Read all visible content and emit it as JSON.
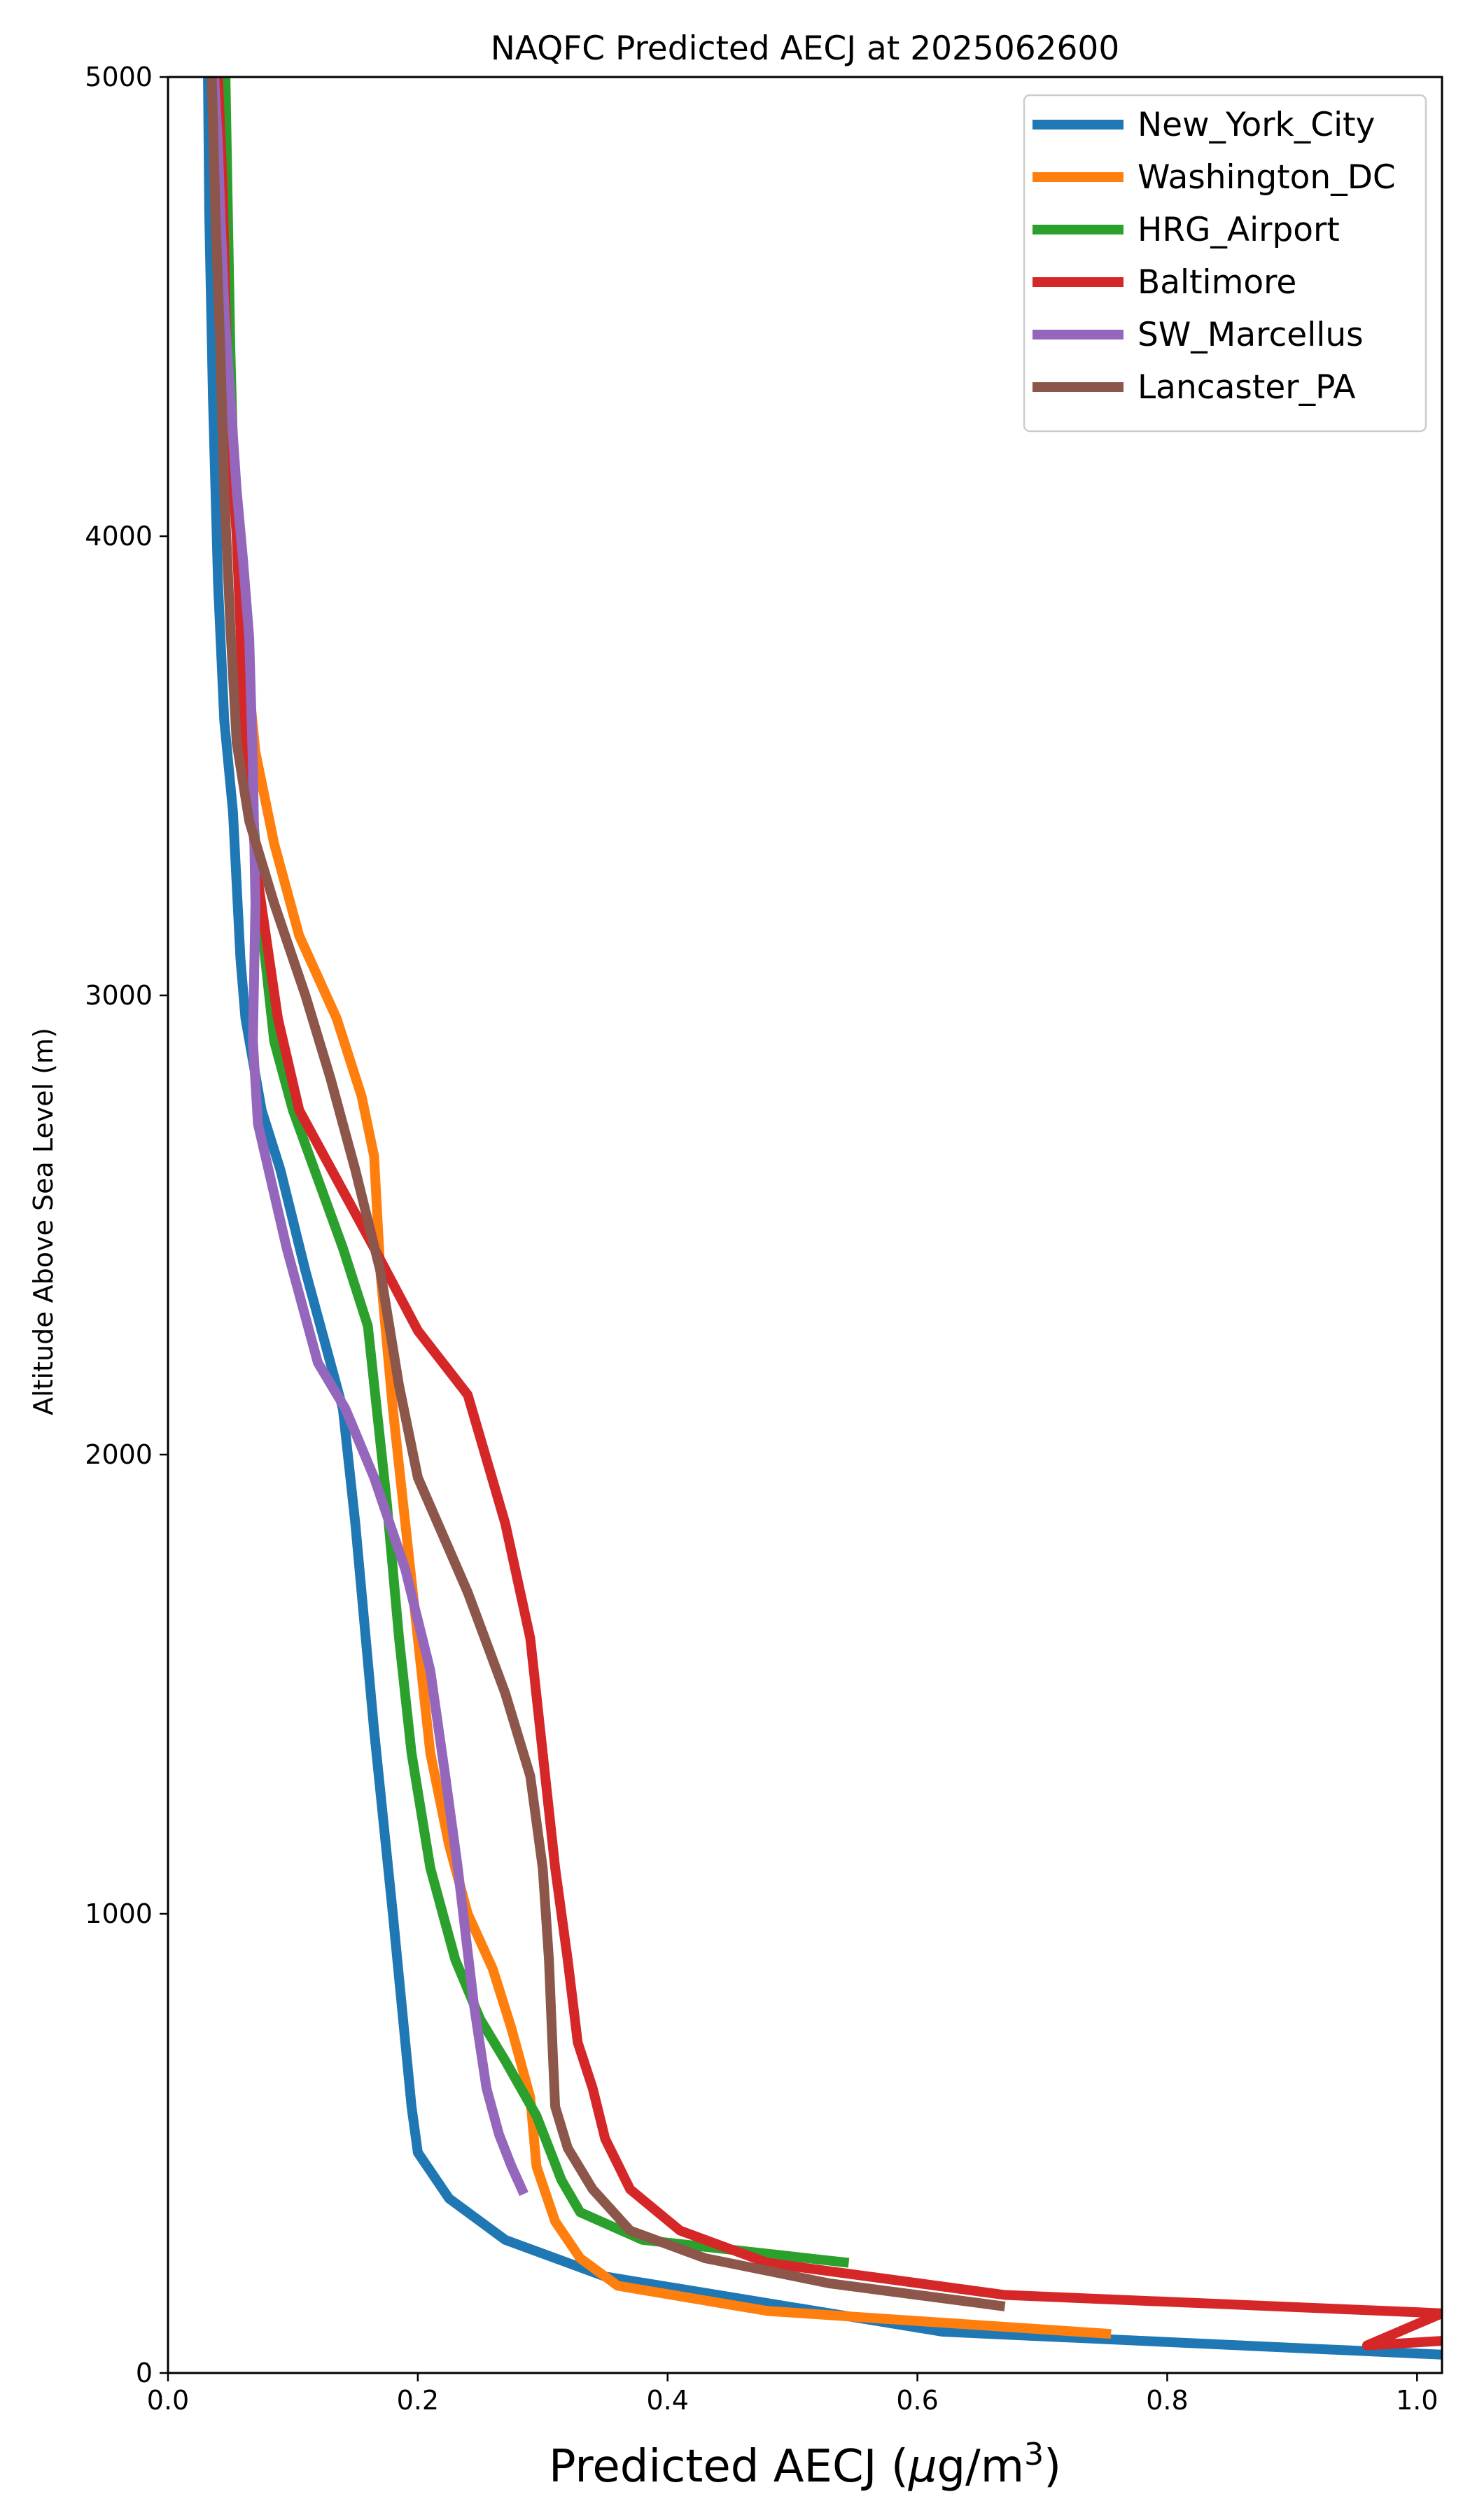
{
  "chart_data": {
    "type": "line",
    "title": "NAQFC Predicted AECJ at 2025062600",
    "xlabel": "Predicted AECJ (μg/m³)",
    "xlabel_main": "Predicted AECJ (",
    "xlabel_mu": "μ",
    "xlabel_unit": "g/m",
    "xlabel_exp": "3",
    "xlabel_close": ")",
    "ylabel": "Altitude Above Sea Level (m)",
    "xlim": [
      0.0,
      1.02
    ],
    "ylim": [
      0,
      5000
    ],
    "xticks": [
      0.0,
      0.2,
      0.4,
      0.6,
      0.8,
      1.0
    ],
    "xtick_labels": [
      "0.0",
      "0.2",
      "0.4",
      "0.6",
      "0.8",
      "1.0"
    ],
    "yticks": [
      0,
      1000,
      2000,
      3000,
      4000,
      5000
    ],
    "ytick_labels": [
      "0",
      "1000",
      "2000",
      "3000",
      "4000",
      "5000"
    ],
    "grid": false,
    "legend_position": "top-right",
    "series": [
      {
        "name": "New_York_City",
        "color": "#1f77b4",
        "x": [
          1.02,
          0.62,
          0.35,
          0.27,
          0.225,
          0.2,
          0.195,
          0.18,
          0.165,
          0.15,
          0.14,
          0.11,
          0.09,
          0.075,
          0.062,
          0.058,
          0.052,
          0.045,
          0.04,
          0.036,
          0.033,
          0.032,
          0.032
        ],
        "y": [
          40,
          90,
          210,
          290,
          380,
          480,
          580,
          1000,
          1400,
          1850,
          2100,
          2400,
          2620,
          2750,
          2950,
          3080,
          3400,
          3600,
          3900,
          4300,
          4700,
          5000,
          5000
        ]
      },
      {
        "name": "Washington_DC",
        "color": "#ff7f0e",
        "x": [
          0.755,
          0.48,
          0.36,
          0.33,
          0.31,
          0.295,
          0.29,
          0.275,
          0.26,
          0.24,
          0.225,
          0.21,
          0.2,
          0.19,
          0.18,
          0.17,
          0.165,
          0.155,
          0.135,
          0.105,
          0.085,
          0.07,
          0.062,
          0.058,
          0.052,
          0.048,
          0.045,
          0.042,
          0.04
        ],
        "y": [
          85,
          135,
          190,
          250,
          330,
          450,
          600,
          750,
          880,
          1000,
          1150,
          1350,
          1600,
          1850,
          2100,
          2400,
          2650,
          2780,
          2950,
          3130,
          3330,
          3530,
          3750,
          3950,
          4200,
          4450,
          4700,
          4900,
          5000
        ]
      },
      {
        "name": "HRG_Airport",
        "color": "#2ca02c",
        "x": [
          0.545,
          0.38,
          0.33,
          0.315,
          0.295,
          0.27,
          0.25,
          0.23,
          0.21,
          0.195,
          0.185,
          0.175,
          0.16,
          0.14,
          0.12,
          0.1,
          0.085,
          0.075,
          0.068,
          0.062,
          0.058,
          0.055,
          0.052,
          0.05,
          0.048,
          0.046
        ],
        "y": [
          240,
          290,
          350,
          420,
          560,
          680,
          770,
          900,
          1100,
          1350,
          1600,
          1900,
          2280,
          2450,
          2600,
          2750,
          2900,
          3150,
          3400,
          3600,
          3800,
          4000,
          4200,
          4400,
          4700,
          5000
        ]
      },
      {
        "name": "Baltimore",
        "color": "#d62728",
        "x": [
          1.02,
          0.96,
          1.02,
          0.67,
          0.48,
          0.41,
          0.37,
          0.35,
          0.34,
          0.328,
          0.32,
          0.31,
          0.3,
          0.29,
          0.27,
          0.24,
          0.2,
          0.165,
          0.135,
          0.105,
          0.088,
          0.08,
          0.072,
          0.065,
          0.06,
          0.058,
          0.055,
          0.05,
          0.046,
          0.044,
          0.04
        ],
        "y": [
          70,
          60,
          130,
          170,
          240,
          310,
          400,
          510,
          620,
          720,
          900,
          1100,
          1350,
          1600,
          1850,
          2130,
          2270,
          2450,
          2600,
          2750,
          2950,
          3100,
          3250,
          3450,
          3650,
          3800,
          4000,
          4200,
          4500,
          4750,
          5000
        ]
      },
      {
        "name": "SW_Marcellus",
        "color": "#9467bd",
        "x": [
          0.285,
          0.275,
          0.265,
          0.255,
          0.245,
          0.232,
          0.222,
          0.21,
          0.19,
          0.165,
          0.142,
          0.12,
          0.095,
          0.072,
          0.068,
          0.07,
          0.068,
          0.065,
          0.06,
          0.055,
          0.05,
          0.045,
          0.042,
          0.04,
          0.037
        ],
        "y": [
          390,
          450,
          520,
          620,
          800,
          1100,
          1300,
          1530,
          1750,
          1950,
          2100,
          2200,
          2450,
          2720,
          2900,
          3200,
          3500,
          3780,
          3950,
          4100,
          4300,
          4500,
          4700,
          4850,
          5000
        ]
      },
      {
        "name": "Lancaster_PA",
        "color": "#8c564b",
        "x": [
          0.67,
          0.53,
          0.43,
          0.37,
          0.34,
          0.32,
          0.31,
          0.308,
          0.305,
          0.3,
          0.29,
          0.27,
          0.24,
          0.2,
          0.185,
          0.17,
          0.15,
          0.13,
          0.11,
          0.085,
          0.065,
          0.055,
          0.05,
          0.045,
          0.042,
          0.038,
          0.035
        ],
        "y": [
          145,
          195,
          250,
          310,
          400,
          490,
          580,
          700,
          900,
          1100,
          1300,
          1480,
          1700,
          1950,
          2150,
          2400,
          2620,
          2820,
          3000,
          3200,
          3380,
          3550,
          3800,
          4100,
          4400,
          4700,
          5000
        ]
      }
    ]
  }
}
